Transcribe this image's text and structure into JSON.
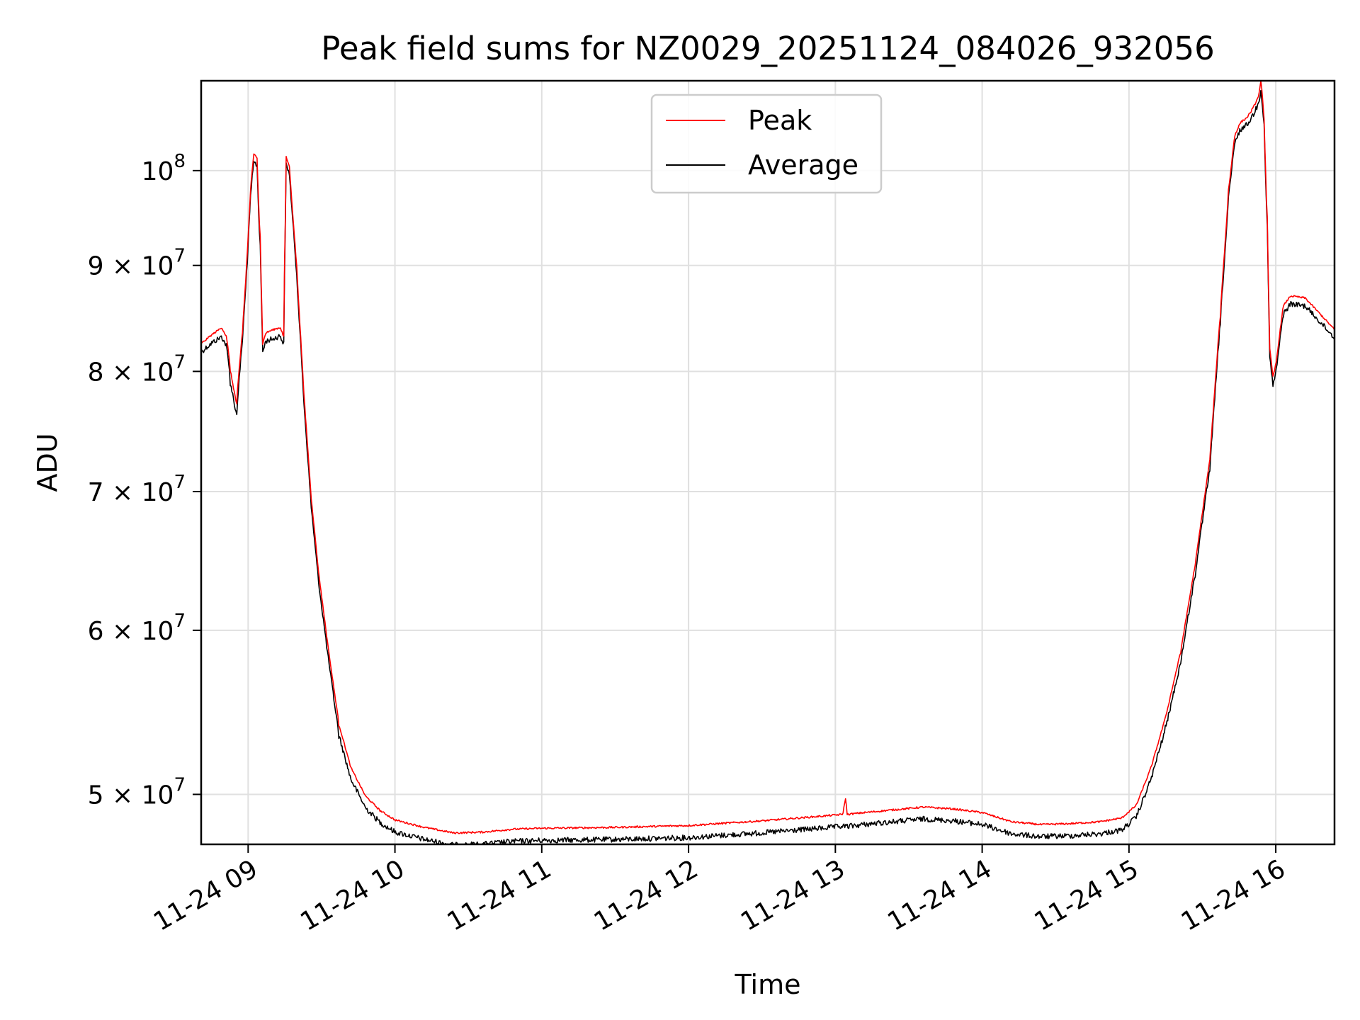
{
  "chart_data": {
    "type": "line",
    "title": "Peak field sums for NZ0029_20251124_084026_932056",
    "xlabel": "Time",
    "ylabel": "ADU",
    "yscale": "log",
    "grid": true,
    "legend_position": "top-center",
    "xlim": [
      8.68,
      16.4
    ],
    "ylim": [
      47300000,
      110500000
    ],
    "x_ticks": [
      {
        "value": 9,
        "label": "11-24 09"
      },
      {
        "value": 10,
        "label": "11-24 10"
      },
      {
        "value": 11,
        "label": "11-24 11"
      },
      {
        "value": 12,
        "label": "11-24 12"
      },
      {
        "value": 13,
        "label": "11-24 13"
      },
      {
        "value": 14,
        "label": "11-24 14"
      },
      {
        "value": 15,
        "label": "11-24 15"
      },
      {
        "value": 16,
        "label": "11-24 16"
      }
    ],
    "y_ticks": [
      {
        "value": 50000000,
        "mantissa": "5",
        "base": "10",
        "exp": "7"
      },
      {
        "value": 60000000,
        "mantissa": "6",
        "base": "10",
        "exp": "7"
      },
      {
        "value": 70000000,
        "mantissa": "7",
        "base": "10",
        "exp": "7"
      },
      {
        "value": 80000000,
        "mantissa": "8",
        "base": "10",
        "exp": "7"
      },
      {
        "value": 90000000,
        "mantissa": "9",
        "base": "10",
        "exp": "7"
      },
      {
        "value": 100000000,
        "mantissa": "",
        "base": "10",
        "exp": "8"
      }
    ],
    "x_units": "hours (2025-11-24)",
    "series": [
      {
        "name": "Peak",
        "color": "#ff0000",
        "x": [
          8.68,
          8.75,
          8.82,
          8.85,
          8.87,
          8.88,
          8.92,
          8.96,
          8.99,
          9.02,
          9.04,
          9.06,
          9.08,
          9.1,
          9.12,
          9.17,
          9.22,
          9.24,
          9.26,
          9.28,
          9.33,
          9.38,
          9.43,
          9.48,
          9.55,
          9.62,
          9.7,
          9.8,
          9.9,
          10.0,
          10.2,
          10.4,
          10.6,
          10.8,
          11.0,
          11.5,
          12.0,
          12.5,
          12.9,
          13.05,
          13.07,
          13.08,
          13.2,
          13.4,
          13.6,
          13.8,
          14.0,
          14.2,
          14.4,
          14.6,
          14.8,
          14.95,
          15.05,
          15.15,
          15.25,
          15.35,
          15.45,
          15.55,
          15.62,
          15.68,
          15.72,
          15.76,
          15.8,
          15.84,
          15.88,
          15.9,
          15.92,
          15.94,
          15.96,
          15.98,
          16.0,
          16.05,
          16.1,
          16.2,
          16.3,
          16.4
        ],
        "y": [
          82500000,
          83300000,
          84000000,
          83200000,
          81500000,
          80000000,
          77200000,
          83500000,
          90000000,
          99000000,
          101800000,
          101500000,
          93000000,
          82500000,
          83500000,
          83800000,
          84000000,
          83200000,
          101500000,
          100500000,
          90000000,
          78000000,
          69500000,
          64000000,
          58500000,
          54000000,
          51500000,
          49900000,
          49100000,
          48600000,
          48200000,
          47900000,
          47950000,
          48100000,
          48150000,
          48200000,
          48300000,
          48550000,
          48800000,
          48900000,
          49800000,
          48900000,
          49000000,
          49150000,
          49300000,
          49200000,
          49000000,
          48500000,
          48350000,
          48400000,
          48500000,
          48700000,
          49400000,
          51500000,
          54500000,
          58500000,
          64500000,
          72500000,
          85000000,
          98000000,
          104000000,
          105500000,
          106000000,
          107000000,
          108500000,
          110500000,
          106000000,
          95000000,
          82000000,
          79500000,
          80500000,
          86000000,
          87000000,
          86800000,
          85300000,
          83800000
        ]
      },
      {
        "name": "Average",
        "color": "#000000",
        "x": [
          8.68,
          8.75,
          8.82,
          8.85,
          8.87,
          8.88,
          8.92,
          8.96,
          8.99,
          9.02,
          9.04,
          9.06,
          9.08,
          9.1,
          9.12,
          9.17,
          9.22,
          9.24,
          9.26,
          9.28,
          9.33,
          9.38,
          9.43,
          9.48,
          9.55,
          9.62,
          9.7,
          9.8,
          9.9,
          10.0,
          10.2,
          10.4,
          10.6,
          10.8,
          11.0,
          11.5,
          12.0,
          12.5,
          12.9,
          13.05,
          13.07,
          13.08,
          13.2,
          13.4,
          13.6,
          13.8,
          14.0,
          14.2,
          14.4,
          14.6,
          14.8,
          14.95,
          15.05,
          15.15,
          15.25,
          15.35,
          15.45,
          15.55,
          15.62,
          15.68,
          15.72,
          15.76,
          15.8,
          15.84,
          15.88,
          15.9,
          15.92,
          15.94,
          15.96,
          15.98,
          16.0,
          16.05,
          16.1,
          16.2,
          16.3,
          16.4
        ],
        "y": [
          82000000,
          82800000,
          83400000,
          82600000,
          80800000,
          79200000,
          76500000,
          83000000,
          89500000,
          98500000,
          101200000,
          100900000,
          92400000,
          82000000,
          83000000,
          83200000,
          83500000,
          82700000,
          101000000,
          100000000,
          89500000,
          77500000,
          69000000,
          63500000,
          58000000,
          53500000,
          51000000,
          49400000,
          48600000,
          48100000,
          47700000,
          47400000,
          47450000,
          47600000,
          47650000,
          47700000,
          47800000,
          48050000,
          48300000,
          48400000,
          48400000,
          48400000,
          48500000,
          48650000,
          48800000,
          48700000,
          48500000,
          48000000,
          47850000,
          47900000,
          48000000,
          48200000,
          48900000,
          51000000,
          54000000,
          58000000,
          64000000,
          72000000,
          84500000,
          97500000,
          103400000,
          105000000,
          105500000,
          106500000,
          108000000,
          109800000,
          105500000,
          94500000,
          81500000,
          79000000,
          80000000,
          85500000,
          86500000,
          86300000,
          84800000,
          83300000
        ]
      }
    ]
  }
}
